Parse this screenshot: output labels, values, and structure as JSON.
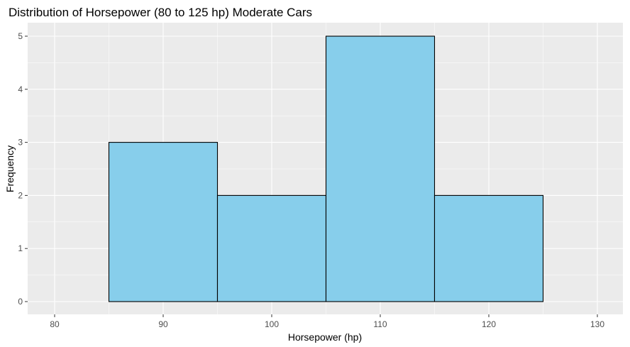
{
  "chart_data": {
    "type": "bar",
    "title": "Distribution of Horsepower (80 to 125 hp) Moderate Cars",
    "xlabel": "Horsepower (hp)",
    "ylabel": "Frequency",
    "bins": [
      [
        85,
        95
      ],
      [
        95,
        105
      ],
      [
        105,
        115
      ],
      [
        115,
        125
      ]
    ],
    "values": [
      3,
      2,
      5,
      2
    ],
    "xlim": [
      75,
      135
    ],
    "ylim": [
      0,
      5.25
    ],
    "xticks": [
      80,
      90,
      100,
      110,
      120,
      130
    ],
    "yticks": [
      0,
      1,
      2,
      3,
      4,
      5
    ],
    "grid": true,
    "colors": {
      "bar_fill": "#87CEEB",
      "bar_stroke": "#000000",
      "panel": "#EBEBEB",
      "grid": "#FFFFFF"
    }
  }
}
